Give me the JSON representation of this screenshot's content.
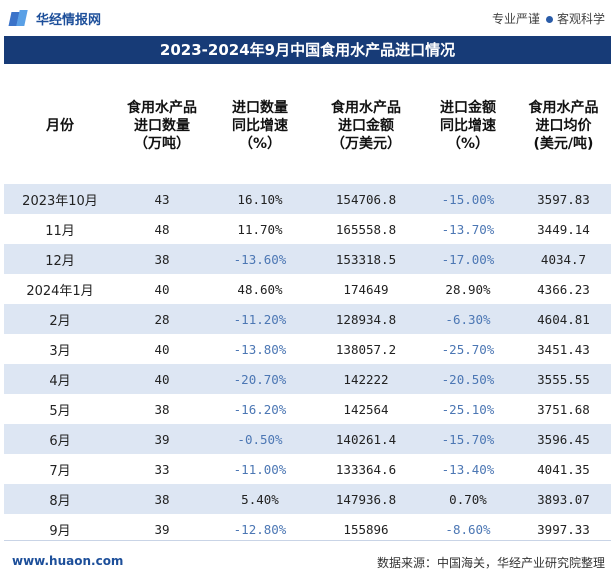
{
  "header": {
    "brand": "华经情报网",
    "slogan_left": "专业严谨",
    "slogan_right": "客观科学"
  },
  "title": "2023-2024年9月中国食用水产品进口情况",
  "table": {
    "columns": [
      "月份",
      "食用水产品\n进口数量\n（万吨）",
      "进口数量\n同比增速\n（%）",
      "食用水产品\n进口金额\n（万美元）",
      "进口金额\n同比增速\n（%）",
      "食用水产品\n进口均价\n(美元/吨)"
    ],
    "rows": [
      [
        "2023年10月",
        "43",
        "16.10%",
        "154706.8",
        "-15.00%",
        "3597.83"
      ],
      [
        "11月",
        "48",
        "11.70%",
        "165558.8",
        "-13.70%",
        "3449.14"
      ],
      [
        "12月",
        "38",
        "-13.60%",
        "153318.5",
        "-17.00%",
        "4034.7"
      ],
      [
        "2024年1月",
        "40",
        "48.60%",
        "174649",
        "28.90%",
        "4366.23"
      ],
      [
        "2月",
        "28",
        "-11.20%",
        "128934.8",
        "-6.30%",
        "4604.81"
      ],
      [
        "3月",
        "40",
        "-13.80%",
        "138057.2",
        "-25.70%",
        "3451.43"
      ],
      [
        "4月",
        "40",
        "-20.70%",
        "142222",
        "-20.50%",
        "3555.55"
      ],
      [
        "5月",
        "38",
        "-16.20%",
        "142564",
        "-25.10%",
        "3751.68"
      ],
      [
        "6月",
        "39",
        "-0.50%",
        "140261.4",
        "-15.70%",
        "3596.45"
      ],
      [
        "7月",
        "33",
        "-11.00%",
        "133364.6",
        "-13.40%",
        "4041.35"
      ],
      [
        "8月",
        "38",
        "5.40%",
        "147936.8",
        "0.70%",
        "3893.07"
      ],
      [
        "9月",
        "39",
        "-12.80%",
        "155896",
        "-8.60%",
        "3997.33"
      ]
    ]
  },
  "footer": {
    "site": "www.huaon.com",
    "source": "数据来源：中国海关，华经产业研究院整理"
  },
  "colors": {
    "title_bar": "#173b77",
    "stripe": "#dde6f3",
    "negative_text": "#4c77b4"
  }
}
